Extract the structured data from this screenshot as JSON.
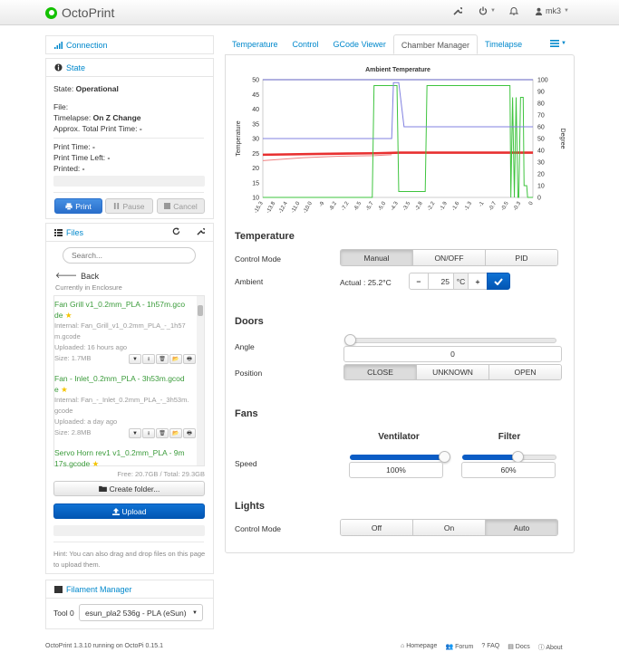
{
  "navbar": {
    "brand": "OctoPrint",
    "user": "mk3"
  },
  "connection": {
    "title": "Connection"
  },
  "state": {
    "title": "State",
    "state_label": "State:",
    "state_value": "Operational",
    "file_label": "File:",
    "timelapse_label": "Timelapse:",
    "timelapse_value": "On Z Change",
    "approx_label": "Approx. Total Print Time:",
    "approx_value": "-",
    "print_time_label": "Print Time:",
    "print_time_value": "-",
    "time_left_label": "Print Time Left:",
    "time_left_value": "-",
    "printed_label": "Printed:",
    "printed_value": "-",
    "buttons": {
      "print": "Print",
      "pause": "Pause",
      "cancel": "Cancel"
    }
  },
  "files": {
    "title": "Files",
    "search_placeholder": "Search...",
    "back": "Back",
    "location": "Currently in Enclosure",
    "items": [
      {
        "name": "Fan Grill v1_0.2mm_PLA - 1h57m.gco",
        "name2": "de",
        "internal": "Internal: Fan_Grill_v1_0.2mm_PLA_-_1h57",
        "internal2": "m.gcode",
        "uploaded": "Uploaded: 16 hours ago",
        "size": "Size: 1.7MB"
      },
      {
        "name": "Fan - Inlet_0.2mm_PLA - 3h53m.gcod",
        "name2": "e",
        "internal": "Internal: Fan_-_Inlet_0.2mm_PLA_-_3h53m.",
        "internal2": "gcode",
        "uploaded": "Uploaded: a day ago",
        "size": "Size: 2.8MB"
      },
      {
        "name": "Servo Horn rev1 v1_0.2mm_PLA - 9m",
        "name2": "17s.gcode"
      }
    ],
    "usage": "Free: 20.7GB / Total: 29.3GB",
    "create_folder": "Create folder...",
    "upload": "Upload",
    "hint": "Hint: You can also drag and drop files on this page to upload them."
  },
  "filament": {
    "title": "Filament Manager",
    "tool_label": "Tool 0",
    "tool_value": "esun_pla2 536g - PLA (eSun)"
  },
  "tabs": [
    "Temperature",
    "Control",
    "GCode Viewer",
    "Chamber Manager",
    "Timelapse"
  ],
  "chart_data": {
    "type": "line",
    "title": "Ambient Temperature",
    "ylabel": "Temperature",
    "y2label": "Degree",
    "ylim": [
      10,
      50
    ],
    "y2lim": [
      0,
      100
    ],
    "yticks": [
      "50",
      "45",
      "40",
      "35",
      "30",
      "25",
      "20",
      "15",
      "10"
    ],
    "y2ticks": [
      "100",
      "90",
      "80",
      "70",
      "60",
      "50",
      "40",
      "30",
      "20",
      "10",
      "0"
    ],
    "xticks": [
      "-15.3",
      "-13.8",
      "-12.4",
      "-11.0",
      "-10.0",
      "-9",
      "-8.2",
      "-7.2",
      "-6.5",
      "-5.7",
      "-5.0",
      "-4.3",
      "-3.5",
      "-2.8",
      "-2.2",
      "-1.9",
      "-1.6",
      "-1.3",
      "-1",
      "-0.7",
      "-0.5",
      "-0.3",
      "0"
    ],
    "series": [
      {
        "color": "#e83030",
        "x": [
          -15.3,
          -12,
          -9,
          -7.5,
          -6,
          -3,
          0
        ],
        "y": [
          24.5,
          24.8,
          25.0,
          25.2,
          25.2,
          25.2,
          25.2
        ]
      },
      {
        "color": "#f08080",
        "x": [
          -15.3,
          -13,
          -11,
          -9,
          -8
        ],
        "y": [
          22.5,
          23.5,
          24,
          24.2,
          24.5
        ]
      },
      {
        "color": "#3ec43e",
        "x": [
          -15.3,
          -9.1,
          -9,
          -7.7,
          -7.6,
          -6.1,
          -6.0,
          -1.3,
          -1.25,
          -1.15,
          -1.05,
          -0.95,
          -0.85,
          -0.8,
          -0.7,
          -0.55,
          -0.5,
          -0.35,
          -0.3,
          0
        ],
        "y": [
          10,
          10,
          48,
          48,
          12,
          12,
          48,
          48,
          10,
          44,
          10,
          44,
          10,
          10,
          44,
          44,
          14,
          14,
          10,
          10
        ]
      },
      {
        "color": "#8080e0",
        "x": [
          -15.3,
          -8,
          -7.9,
          -7.6,
          -7.3,
          0
        ],
        "y": [
          30,
          30,
          49,
          49,
          34,
          34
        ]
      },
      {
        "color": "#6060c0",
        "x": [
          -15.3,
          0
        ],
        "y": [
          50,
          50
        ]
      }
    ]
  },
  "temperature": {
    "title": "Temperature",
    "control_mode_label": "Control Mode",
    "modes": [
      "Manual",
      "ON/OFF",
      "PID"
    ],
    "ambient_label": "Ambient",
    "actual": "Actual : 25.2°C",
    "target": "25",
    "unit": "°C"
  },
  "doors": {
    "title": "Doors",
    "angle_label": "Angle",
    "angle_value": "0",
    "position_label": "Position",
    "positions": [
      "CLOSE",
      "UNKNOWN",
      "OPEN"
    ]
  },
  "fans": {
    "title": "Fans",
    "speed_label": "Speed",
    "ventilator_label": "Ventilator",
    "ventilator_value": "100%",
    "ventilator_level": 1.0,
    "filter_label": "Filter",
    "filter_value": "60%",
    "filter_level": 0.6
  },
  "lights": {
    "title": "Lights",
    "control_mode_label": "Control Mode",
    "modes": [
      "Off",
      "On",
      "Auto"
    ]
  },
  "footer": {
    "version": "OctoPrint 1.3.10 running on OctoPi 0.15.1",
    "links": [
      "Homepage",
      "Forum",
      "FAQ",
      "Docs",
      "About"
    ]
  }
}
